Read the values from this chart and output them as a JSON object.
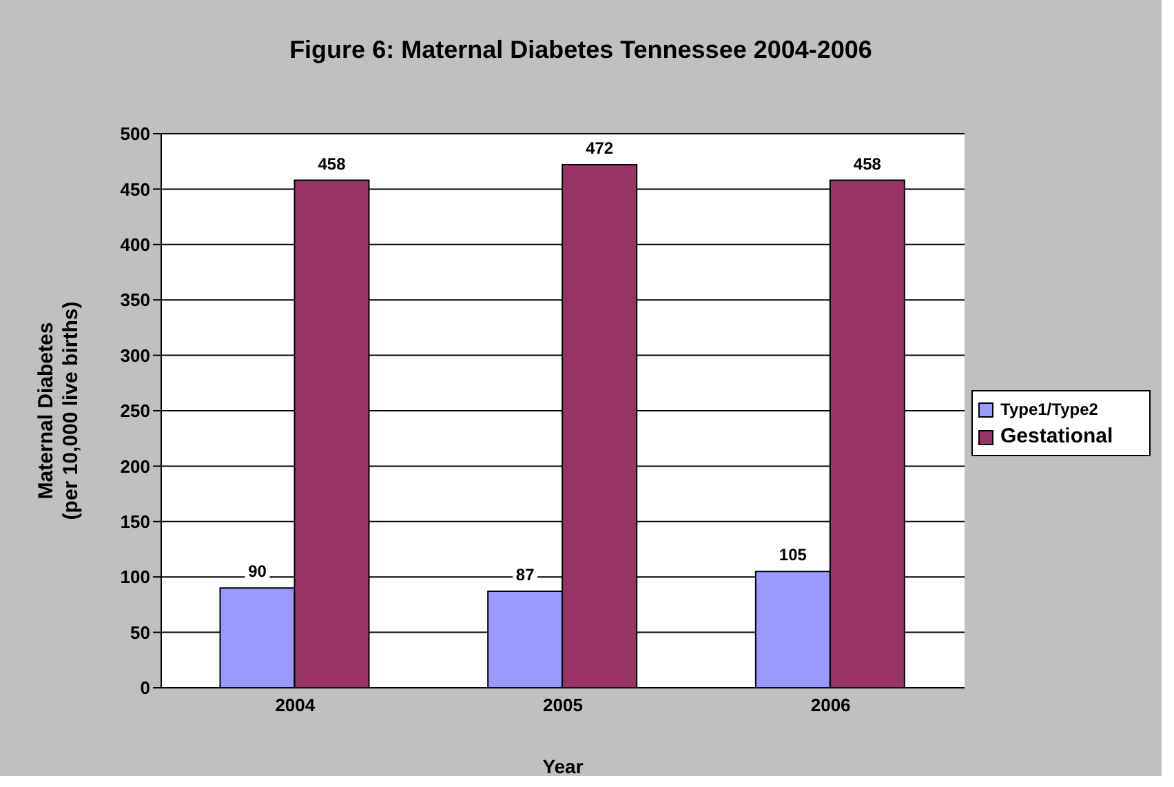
{
  "chart_data": {
    "type": "bar",
    "title": "Figure 6: Maternal Diabetes Tennessee 2004-2006",
    "xlabel": "Year",
    "ylabel": "Maternal Diabetes\n(per 10,000 live births)",
    "categories": [
      "2004",
      "2005",
      "2006"
    ],
    "series": [
      {
        "name": "Type1/Type2",
        "color": "#9999ff",
        "values": [
          90,
          87,
          105
        ]
      },
      {
        "name": "Gestational",
        "color": "#993366",
        "values": [
          458,
          472,
          458
        ]
      }
    ],
    "ylim": [
      0,
      500
    ],
    "yticks": [
      0,
      50,
      100,
      150,
      200,
      250,
      300,
      350,
      400,
      450,
      500
    ],
    "grid": "y",
    "legend": "right",
    "data_labels": true
  }
}
